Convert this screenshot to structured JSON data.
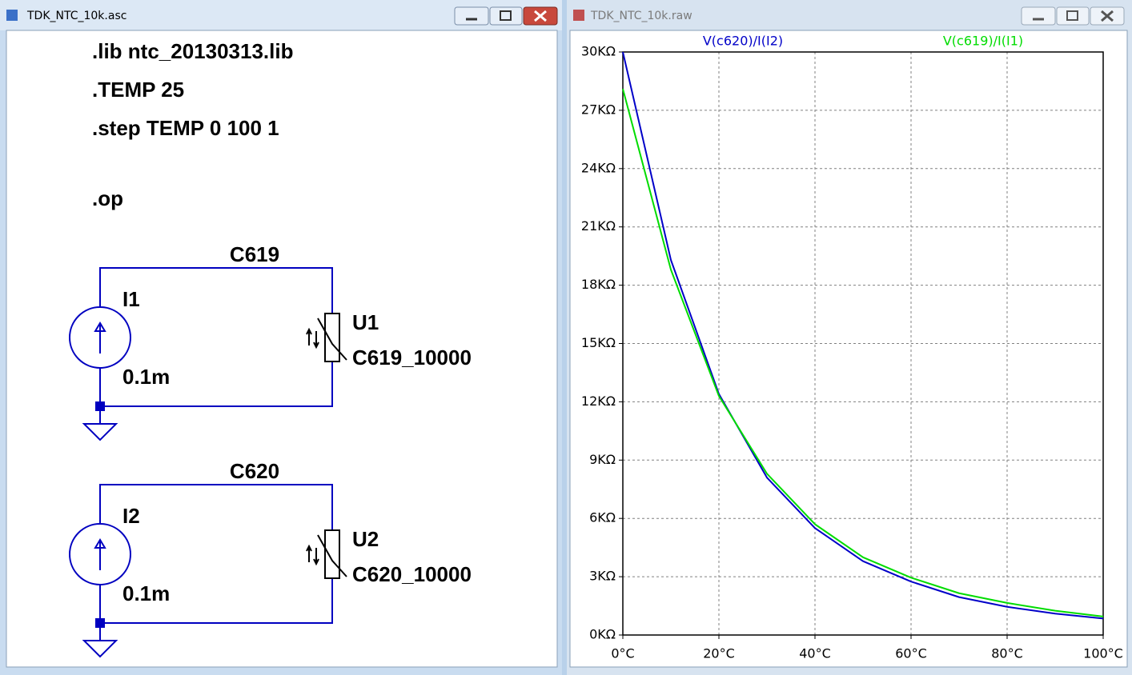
{
  "schematic_window": {
    "title": "TDK_NTC_10k.asc",
    "directives": [
      ".lib ntc_20130313.lib",
      ".TEMP 25",
      ".step TEMP 0 100 1",
      ".op"
    ],
    "circuits": [
      {
        "net": "C619",
        "source": "I1",
        "source_value": "0.1m",
        "part": "U1",
        "part_value": "C619_10000"
      },
      {
        "net": "C620",
        "source": "I2",
        "source_value": "0.1m",
        "part": "U2",
        "part_value": "C620_10000"
      }
    ]
  },
  "plot_window": {
    "title": "TDK_NTC_10k.raw"
  },
  "chart_data": {
    "type": "line",
    "x": [
      0,
      10,
      20,
      30,
      40,
      50,
      60,
      70,
      80,
      90,
      100
    ],
    "series": [
      {
        "name": "V(c620)/I(I2)",
        "color": "#0000c8",
        "values": [
          30000,
          19300,
          12400,
          8100,
          5500,
          3800,
          2750,
          1950,
          1450,
          1100,
          850
        ]
      },
      {
        "name": "V(c619)/I(I1)",
        "color": "#00dc00",
        "values": [
          28100,
          18800,
          12300,
          8300,
          5700,
          4000,
          2950,
          2150,
          1650,
          1250,
          950
        ]
      }
    ],
    "xlim": [
      0,
      100
    ],
    "xticks": [
      {
        "value": 0,
        "label": "0°C"
      },
      {
        "value": 20,
        "label": "20°C"
      },
      {
        "value": 40,
        "label": "40°C"
      },
      {
        "value": 60,
        "label": "60°C"
      },
      {
        "value": 80,
        "label": "80°C"
      },
      {
        "value": 100,
        "label": "100°C"
      }
    ],
    "ylim": [
      0,
      30000
    ],
    "yticks": [
      {
        "value": 0,
        "label": "0KΩ"
      },
      {
        "value": 3000,
        "label": "3KΩ"
      },
      {
        "value": 6000,
        "label": "6KΩ"
      },
      {
        "value": 9000,
        "label": "9KΩ"
      },
      {
        "value": 12000,
        "label": "12KΩ"
      },
      {
        "value": 15000,
        "label": "15KΩ"
      },
      {
        "value": 18000,
        "label": "18KΩ"
      },
      {
        "value": 21000,
        "label": "21KΩ"
      },
      {
        "value": 24000,
        "label": "24KΩ"
      },
      {
        "value": 27000,
        "label": "27KΩ"
      },
      {
        "value": 30000,
        "label": "30KΩ"
      }
    ],
    "grid": true
  }
}
